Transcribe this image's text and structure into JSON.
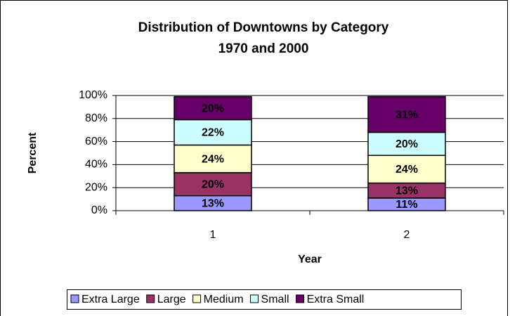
{
  "chart_data": {
    "type": "stacked_bar",
    "title": "Distribution of Downtowns by Category",
    "subtitle": "1970 and 2000",
    "x_label": "Year",
    "y_label": "Percent",
    "categories": [
      "1",
      "2"
    ],
    "series": [
      {
        "name": "Extra Large",
        "color": "#9999ff",
        "values": [
          13,
          11
        ],
        "value_labels": [
          "13%",
          "11%"
        ]
      },
      {
        "name": "Large",
        "color": "#993366",
        "values": [
          20,
          13
        ],
        "value_labels": [
          "20%",
          "13%"
        ]
      },
      {
        "name": "Medium",
        "color": "#ffffcc",
        "values": [
          24,
          24
        ],
        "value_labels": [
          "24%",
          "24%"
        ]
      },
      {
        "name": "Small",
        "color": "#ccffff",
        "values": [
          22,
          20
        ],
        "value_labels": [
          "22%",
          "20%"
        ]
      },
      {
        "name": "Extra Small",
        "color": "#660066",
        "values": [
          20,
          31
        ],
        "value_labels": [
          "20%",
          "31%"
        ]
      }
    ],
    "ylim": [
      0,
      100
    ],
    "yticks": [
      {
        "value": 0,
        "label": "0%"
      },
      {
        "value": 20,
        "label": "20%"
      },
      {
        "value": 40,
        "label": "40%"
      },
      {
        "value": 60,
        "label": "60%"
      },
      {
        "value": 80,
        "label": "80%"
      },
      {
        "value": 100,
        "label": "100%"
      }
    ],
    "grid": true,
    "legend": "bottom"
  }
}
